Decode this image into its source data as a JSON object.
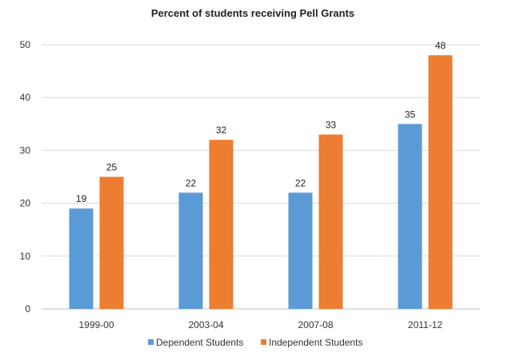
{
  "chart_data": {
    "type": "bar",
    "title": "Percent of students receiving Pell Grants",
    "categories": [
      "1999-00",
      "2003-04",
      "2007-08",
      "2011-12"
    ],
    "series": [
      {
        "name": "Dependent Students",
        "values": [
          19,
          22,
          22,
          35
        ],
        "color": "#5b9bd5"
      },
      {
        "name": "Independent Students",
        "values": [
          25,
          32,
          33,
          48
        ],
        "color": "#ed7d31"
      }
    ],
    "ylim": [
      0,
      50
    ],
    "yticks": [
      0,
      10,
      20,
      30,
      40,
      50
    ],
    "grid": true,
    "legend": "bottom",
    "data_labels": true,
    "xlabel": "",
    "ylabel": ""
  }
}
